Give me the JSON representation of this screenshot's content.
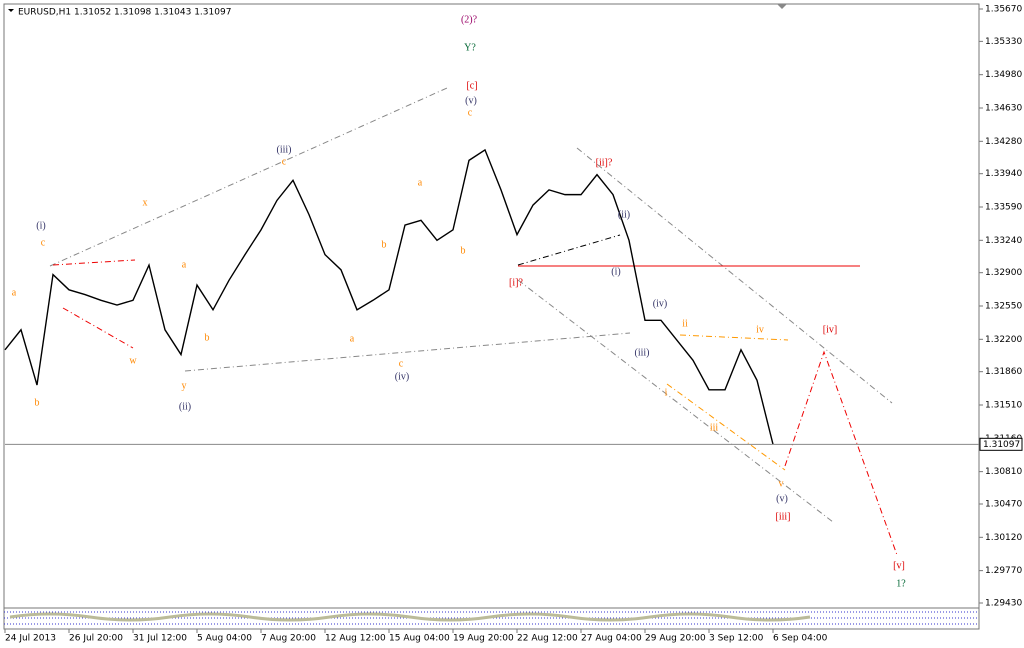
{
  "chart_data": {
    "type": "line",
    "title": "EURUSD,H1  1.31052 1.31098 1.31043 1.31097",
    "categories": [
      "24 Jul 2013",
      null,
      null,
      null,
      "26 Jul 20:00",
      null,
      null,
      null,
      "31 Jul 12:00",
      null,
      null,
      null,
      "5 Aug 04:00",
      null,
      null,
      null,
      "7 Aug 20:00",
      null,
      null,
      null,
      "12 Aug 12:00",
      null,
      null,
      null,
      "15 Aug 04:00",
      null,
      null,
      null,
      "19 Aug 20:00",
      null,
      null,
      null,
      "22 Aug 12:00",
      null,
      null,
      null,
      "27 Aug 04:00",
      null,
      null,
      null,
      "29 Aug 20:00",
      null,
      null,
      null,
      "3 Sep 12:00",
      null,
      null,
      null,
      "6 Sep 04:00"
    ],
    "values": [
      1.3209,
      1.323,
      1.3172,
      1.3288,
      1.3272,
      1.3267,
      1.3261,
      1.3256,
      1.3261,
      1.3298,
      1.323,
      1.3204,
      1.3277,
      1.3251,
      1.3282,
      1.3309,
      1.3335,
      1.3366,
      1.3387,
      1.3351,
      1.3309,
      1.3293,
      1.3251,
      1.3261,
      1.3272,
      1.334,
      1.3345,
      1.3324,
      1.3335,
      1.3408,
      1.3419,
      1.3377,
      1.333,
      1.3361,
      1.3377,
      1.3372,
      1.3372,
      1.3393,
      1.3372,
      1.3324,
      1.324,
      1.324,
      1.3219,
      1.3198,
      1.3167,
      1.3167,
      1.3209,
      1.3177,
      1.31097
    ],
    "color": "#000000",
    "ylim": [
      1.2943,
      1.3567
    ],
    "yticks": [
      {
        "value": 1.2943,
        "label": "1.29430"
      },
      {
        "value": 1.2977,
        "label": "1.29770"
      },
      {
        "value": 1.3012,
        "label": "1.30120"
      },
      {
        "value": 1.3047,
        "label": "1.30470"
      },
      {
        "value": 1.3081,
        "label": "1.30810"
      },
      {
        "value": 1.3116,
        "label": "1.31160"
      },
      {
        "value": 1.3151,
        "label": "1.31510"
      },
      {
        "value": 1.3186,
        "label": "1.31860"
      },
      {
        "value": 1.322,
        "label": "1.32200"
      },
      {
        "value": 1.3255,
        "label": "1.32550"
      },
      {
        "value": 1.329,
        "label": "1.32900"
      },
      {
        "value": 1.3324,
        "label": "1.33240"
      },
      {
        "value": 1.3359,
        "label": "1.33590"
      },
      {
        "value": 1.3394,
        "label": "1.33940"
      },
      {
        "value": 1.3428,
        "label": "1.34280"
      },
      {
        "value": 1.3463,
        "label": "1.34630"
      },
      {
        "value": 1.3498,
        "label": "1.34980"
      },
      {
        "value": 1.3533,
        "label": "1.35330"
      },
      {
        "value": 1.3567,
        "label": "1.35670"
      }
    ],
    "grid": false,
    "current_price": 1.31097,
    "annotations": [
      "(2)?",
      "Y?",
      "[c]",
      "(v)",
      "c",
      "(iii)",
      "c",
      "(i)",
      "c",
      "x",
      "a",
      "b",
      "w",
      "y",
      "(ii)",
      "a",
      "b",
      "a",
      "b",
      "b",
      "a",
      "c",
      "(iv)",
      "[ii]?",
      "(ii)",
      "(i)",
      "[i]?",
      "(iv)",
      "(iii)",
      "ii",
      "iv",
      "i",
      "iii",
      "v",
      "(v)",
      "[iii]",
      "[iv]",
      "[v]",
      "1?"
    ]
  }
}
